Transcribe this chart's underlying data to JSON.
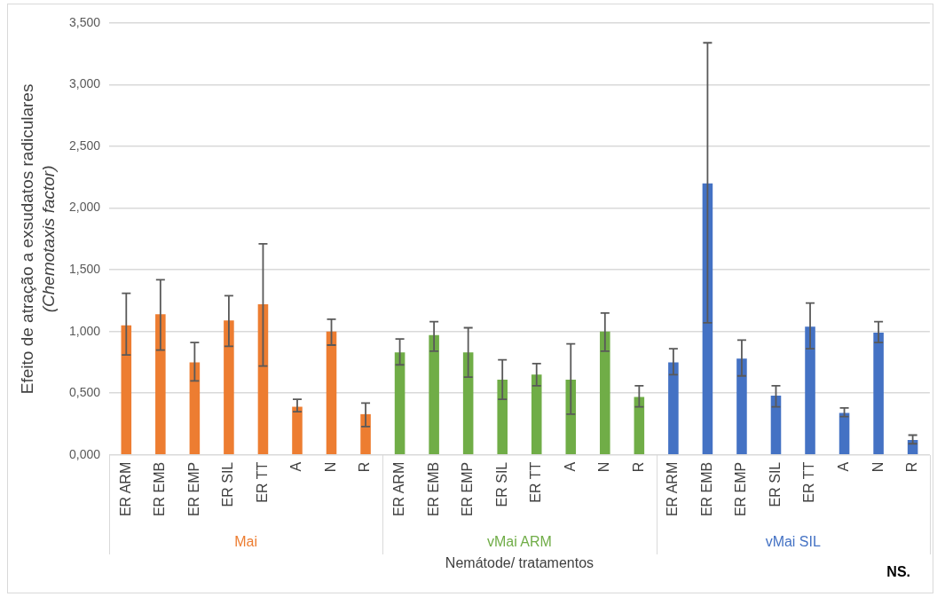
{
  "chart_data": {
    "type": "bar",
    "xlabel": "Nemátode/ tratamentos",
    "ylabel": "Efeito de atração a exsudatos radiculares\n(Chemotaxis factor)",
    "categories": [
      "ER ARM",
      "ER EMB",
      "ER EMP",
      "ER SIL",
      "ER TT",
      "A",
      "N",
      "R",
      "ER ARM",
      "ER EMB",
      "ER EMP",
      "ER SIL",
      "ER TT",
      "A",
      "N",
      "R",
      "ER ARM",
      "ER EMB",
      "ER EMP",
      "ER SIL",
      "ER TT",
      "A",
      "N",
      "R"
    ],
    "series": [
      {
        "name": "Mai",
        "color": "#ed7d31",
        "values": [
          1.05,
          1.14,
          0.75,
          1.09,
          1.22,
          0.39,
          1.0,
          0.33,
          null,
          null,
          null,
          null,
          null,
          null,
          null,
          null,
          null,
          null,
          null,
          null,
          null,
          null,
          null,
          null
        ],
        "errors": [
          [
            0.81,
            1.31
          ],
          [
            0.85,
            1.42
          ],
          [
            0.6,
            0.91
          ],
          [
            0.88,
            1.29
          ],
          [
            0.72,
            1.71
          ],
          [
            0.35,
            0.45
          ],
          [
            0.89,
            1.1
          ],
          [
            0.23,
            0.42
          ],
          null,
          null,
          null,
          null,
          null,
          null,
          null,
          null,
          null,
          null,
          null,
          null,
          null,
          null,
          null,
          null
        ]
      },
      {
        "name": "vMai ARM",
        "color": "#70ad47",
        "values": [
          null,
          null,
          null,
          null,
          null,
          null,
          null,
          null,
          0.83,
          0.97,
          0.83,
          0.61,
          0.65,
          0.61,
          1.0,
          0.47,
          null,
          null,
          null,
          null,
          null,
          null,
          null,
          null
        ],
        "errors": [
          null,
          null,
          null,
          null,
          null,
          null,
          null,
          null,
          [
            0.73,
            0.94
          ],
          [
            0.84,
            1.08
          ],
          [
            0.63,
            1.03
          ],
          [
            0.45,
            0.77
          ],
          [
            0.56,
            0.74
          ],
          [
            0.33,
            0.9
          ],
          [
            0.84,
            1.15
          ],
          [
            0.39,
            0.56
          ],
          null,
          null,
          null,
          null,
          null,
          null,
          null,
          null
        ]
      },
      {
        "name": "vMai SIL",
        "color": "#4472c4",
        "values": [
          null,
          null,
          null,
          null,
          null,
          null,
          null,
          null,
          null,
          null,
          null,
          null,
          null,
          null,
          null,
          null,
          0.75,
          2.2,
          0.78,
          0.48,
          1.04,
          0.34,
          0.99,
          0.12
        ],
        "errors": [
          null,
          null,
          null,
          null,
          null,
          null,
          null,
          null,
          null,
          null,
          null,
          null,
          null,
          null,
          null,
          null,
          [
            0.65,
            0.86
          ],
          [
            1.07,
            3.34
          ],
          [
            0.64,
            0.93
          ],
          [
            0.39,
            0.56
          ],
          [
            0.86,
            1.23
          ],
          [
            0.31,
            0.38
          ],
          [
            0.91,
            1.08
          ],
          [
            0.09,
            0.16
          ]
        ]
      }
    ],
    "ylim": [
      0,
      3.5
    ],
    "yticks": [
      {
        "value": 0,
        "label": "0,000"
      },
      {
        "value": 0.5,
        "label": "0,500"
      },
      {
        "value": 1,
        "label": "1,000"
      },
      {
        "value": 1.5,
        "label": "1,500"
      },
      {
        "value": 2,
        "label": "2,000"
      },
      {
        "value": 2.5,
        "label": "2,500"
      },
      {
        "value": 3,
        "label": "3,000"
      },
      {
        "value": 3.5,
        "label": "3,500"
      }
    ],
    "grid": "y",
    "legend": false,
    "annotations": [
      "NS."
    ]
  }
}
